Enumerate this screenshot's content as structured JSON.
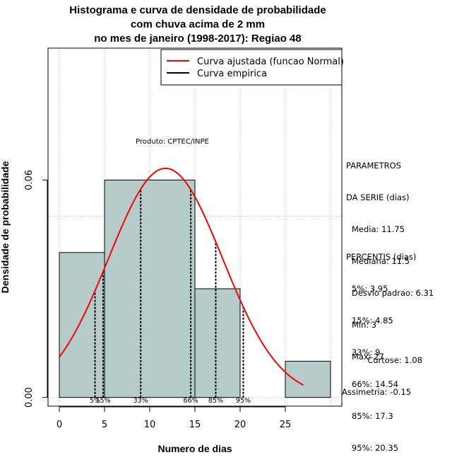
{
  "title": {
    "line1": "Histograma e curva de densidade de probabilidade",
    "line2": "com chuva acima de 2 mm",
    "line3": "no mes de janeiro (1998-2017): Regiao 48"
  },
  "watermark": "Produto: CPTEC/INPE",
  "legend": {
    "fitted": "Curva ajustada (funcao Normal)",
    "empirical": "Curva empirica"
  },
  "params": {
    "header1": "PARAMETROS",
    "header2": "DA SERIE (dias)",
    "media": "Media: 11.75",
    "mediana": "Mediana: 11.5",
    "desvio": "Desvio padrao: 6.31",
    "min": "Min: 3",
    "max": "Max: 27"
  },
  "percentis": {
    "header": "PERCENTIS (dias)",
    "p5": "5%: 3.95",
    "p15": "15%: 4.85",
    "p33": "33%: 9",
    "p66": "66%: 14.54",
    "p85": "85%: 17.3",
    "p95": "95%: 20.35"
  },
  "stats": {
    "curtose": "Curtose: 1.08",
    "assimetria": "Assimetria: -0.15"
  },
  "colors": {
    "bar_fill": "#b5cccb",
    "fitted_curve": "#ff0000",
    "empirical": "#000000",
    "grid": "#bbbbbb"
  },
  "chart_data": {
    "type": "bar",
    "xlabel": "Numero de dias",
    "ylabel": "Densidade de probabilidade",
    "xlim": [
      -1.25,
      31.25
    ],
    "ylim": [
      -0.0024,
      0.0964
    ],
    "x_ticks": [
      0,
      5,
      10,
      15,
      20,
      25
    ],
    "y_ticks": [
      0.0,
      0.06
    ],
    "y_tick_labels": [
      "0.00",
      "0.06"
    ],
    "bins": [
      {
        "from": 0,
        "to": 5,
        "density": 0.04
      },
      {
        "from": 5,
        "to": 15,
        "density": 0.06
      },
      {
        "from": 15,
        "to": 20,
        "density": 0.03
      },
      {
        "from": 20,
        "to": 25,
        "density": 0.0
      },
      {
        "from": 25,
        "to": 30,
        "density": 0.01
      }
    ],
    "normal_fit": {
      "mean": 11.75,
      "sd": 6.31,
      "from": 0,
      "to": 27
    },
    "percentiles": [
      {
        "label": "5%",
        "x": 3.95
      },
      {
        "label": "15%",
        "x": 4.85
      },
      {
        "label": "33%",
        "x": 9
      },
      {
        "label": "66%",
        "x": 14.54
      },
      {
        "label": "85%",
        "x": 17.3
      },
      {
        "label": "95%",
        "x": 20.35
      }
    ],
    "grid": true,
    "legend_position": "top-right"
  }
}
